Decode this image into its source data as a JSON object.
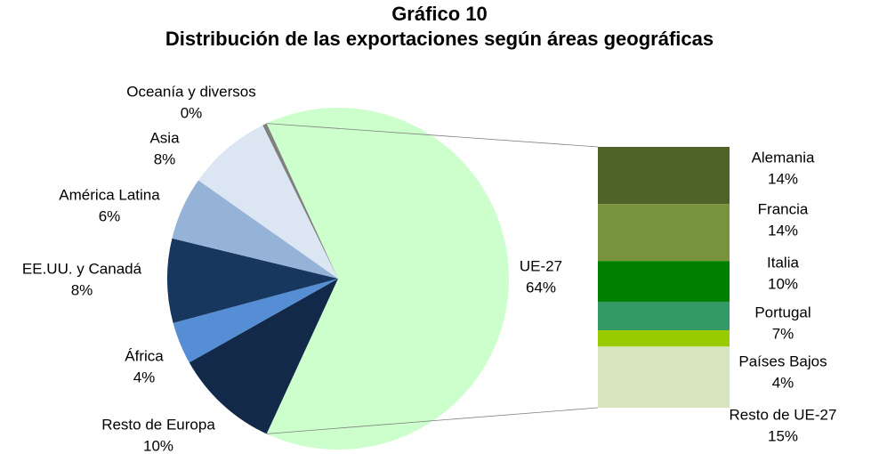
{
  "chart_data": {
    "type": "pie",
    "title": [
      "Gráfico 10",
      "Distribución de las exportaciones según áreas geográficas"
    ],
    "categories": [
      "UE-27",
      "Resto de Europa",
      "África",
      "EE.UU. y Canadá",
      "América Latina",
      "Asia",
      "Oceanía y diversos"
    ],
    "values": [
      64,
      10,
      4,
      8,
      6,
      8,
      0.4
    ],
    "value_labels": [
      "64%",
      "10%",
      "4%",
      "8%",
      "6%",
      "8%",
      "0%"
    ],
    "colors": [
      "#ccffcc",
      "#13294a",
      "#558ed5",
      "#17375e",
      "#95b3d7",
      "#dce6f2",
      "#7f7f7f"
    ],
    "breakdown": {
      "categories": [
        "Alemania",
        "Francia",
        "Italia",
        "Portugal",
        "Países Bajos",
        "Resto de UE-27"
      ],
      "values": [
        14,
        14,
        10,
        7,
        4,
        15
      ],
      "value_labels": [
        "14%",
        "14%",
        "10%",
        "7%",
        "4%",
        "15%"
      ],
      "colors": [
        "#4f6228",
        "#77933c",
        "#008000",
        "#339966",
        "#99cc00",
        "#d7e4bd"
      ]
    }
  }
}
